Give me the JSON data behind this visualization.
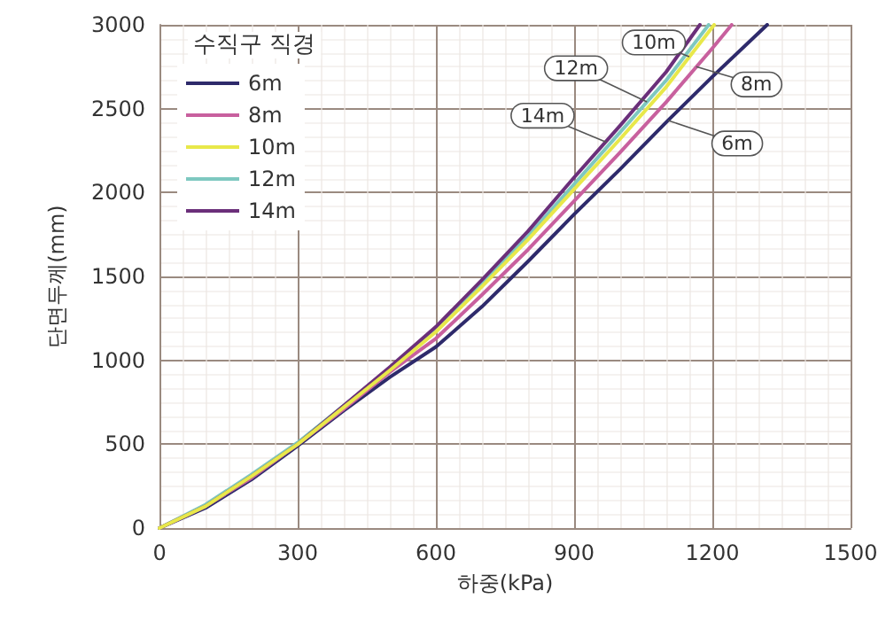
{
  "chart_data": {
    "type": "line",
    "xlabel": "하중(kPa)",
    "ylabel": "단면두께(mm)",
    "legend_title": "수직구 직경",
    "xlim": [
      0,
      1500
    ],
    "xticks": [
      0,
      300,
      600,
      900,
      1200,
      1500
    ],
    "ylim": [
      0,
      3000
    ],
    "yticks": [
      0,
      500,
      1000,
      1500,
      2000,
      2500,
      3000
    ],
    "grid": true,
    "legend": "top left",
    "marker": "none",
    "line_style": "solid",
    "series": [
      {
        "name": "6m",
        "color": "#2e2a6b",
        "x": [
          0,
          100,
          200,
          300,
          400,
          500,
          600,
          700,
          800,
          900,
          1000,
          1100,
          1200,
          1319
        ],
        "values": [
          0,
          120,
          290,
          490,
          700,
          900,
          1080,
          1320,
          1590,
          1870,
          2140,
          2420,
          2690,
          3000
        ]
      },
      {
        "name": "8m",
        "color": "#c8609e",
        "x": [
          0,
          100,
          200,
          300,
          400,
          500,
          600,
          700,
          800,
          900,
          1000,
          1100,
          1200,
          1242
        ],
        "values": [
          0,
          130,
          300,
          500,
          710,
          930,
          1130,
          1390,
          1660,
          1950,
          2240,
          2540,
          2860,
          3000
        ]
      },
      {
        "name": "10m",
        "color": "#e8e84a",
        "x": [
          0,
          100,
          200,
          300,
          400,
          500,
          600,
          700,
          800,
          900,
          1000,
          1100,
          1204
        ],
        "values": [
          0,
          130,
          310,
          500,
          720,
          940,
          1170,
          1440,
          1720,
          2020,
          2320,
          2630,
          3000
        ]
      },
      {
        "name": "12m",
        "color": "#7ec8c0",
        "x": [
          0,
          100,
          200,
          300,
          400,
          500,
          600,
          700,
          800,
          900,
          1000,
          1100,
          1192
        ],
        "values": [
          0,
          140,
          320,
          510,
          730,
          950,
          1180,
          1460,
          1740,
          2050,
          2360,
          2670,
          3000
        ]
      },
      {
        "name": "14m",
        "color": "#6b2f7a",
        "x": [
          0,
          100,
          200,
          300,
          400,
          500,
          600,
          700,
          800,
          900,
          1000,
          1100,
          1173
        ],
        "values": [
          0,
          130,
          310,
          500,
          730,
          960,
          1200,
          1480,
          1770,
          2090,
          2400,
          2720,
          3000
        ]
      }
    ],
    "annotations": [
      {
        "text": "10m",
        "x": 1150,
        "y": 2810
      },
      {
        "text": "12m",
        "x": 1058,
        "y": 2540
      },
      {
        "text": "14m",
        "x": 970,
        "y": 2300
      },
      {
        "text": "8m",
        "x": 1165,
        "y": 2750
      },
      {
        "text": "6m",
        "x": 1104,
        "y": 2430
      }
    ]
  }
}
